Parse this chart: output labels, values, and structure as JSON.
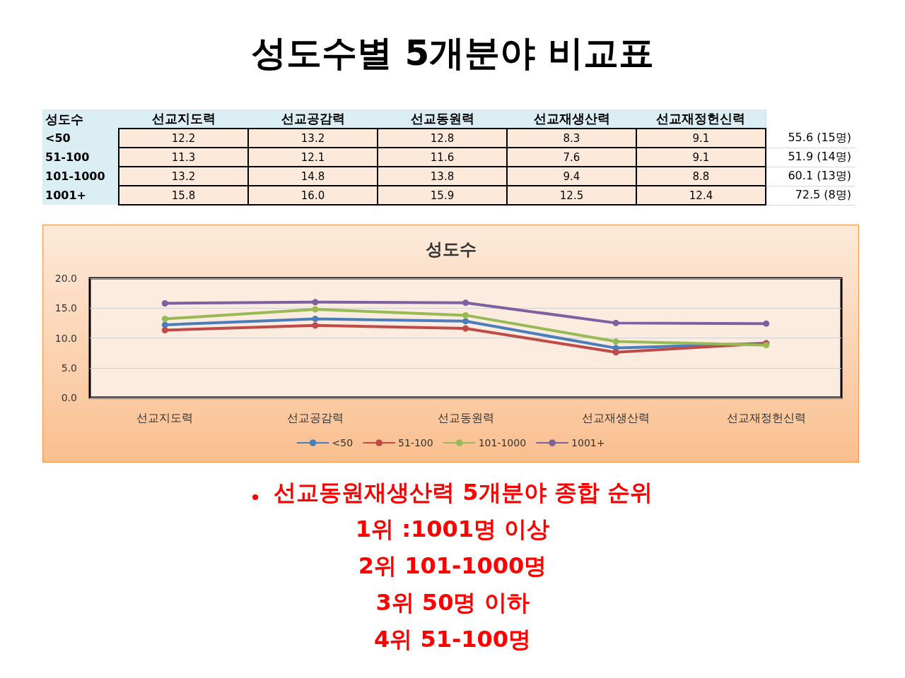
{
  "chart_data": {
    "type": "line",
    "title": "성도수별 5개분야 비교표",
    "subtitle": "성도수",
    "legend_title": "성도수",
    "categories": [
      "선교지도력",
      "선교공감력",
      "선교동원력",
      "선교재생산력",
      "선교재정헌신력"
    ],
    "series": [
      {
        "name": "<50",
        "color": "#4a7ebb",
        "values": [
          12.2,
          13.2,
          12.8,
          8.3,
          9.1
        ],
        "value_labels": [
          "12.2",
          "13.2",
          "12.8",
          "8.3",
          "9.1"
        ]
      },
      {
        "name": "51-100",
        "color": "#be4b48",
        "values": [
          11.3,
          12.1,
          11.6,
          7.6,
          9.1
        ],
        "value_labels": [
          "11.3",
          "12.1",
          "11.6",
          "7.6",
          "9.1"
        ]
      },
      {
        "name": "101-1000",
        "color": "#98b954",
        "values": [
          13.2,
          14.8,
          13.8,
          9.4,
          8.8
        ],
        "value_labels": [
          "13.2",
          "14.8",
          "13.8",
          "9.4",
          "8.8"
        ]
      },
      {
        "name": "1001+",
        "color": "#7d60a0",
        "values": [
          15.8,
          16.0,
          15.9,
          12.5,
          12.4
        ],
        "value_labels": [
          "15.8",
          "16.0",
          "15.9",
          "12.5",
          "12.4"
        ]
      }
    ],
    "totals": [
      "55.6 (15명)",
      "51.9 (14명)",
      "60.1 (13명)",
      "72.5 (8명)"
    ],
    "ylim": [
      0,
      20
    ],
    "yticks": [
      {
        "value": 0,
        "label": "0.0"
      },
      {
        "value": 5,
        "label": "5.0"
      },
      {
        "value": 10,
        "label": "10.0"
      },
      {
        "value": 15,
        "label": "15.0"
      },
      {
        "value": 20,
        "label": "20.0"
      }
    ],
    "grid": "y",
    "legend": "bottom",
    "marker": "circle",
    "line_style": "solid",
    "annotations": [
      "선교동원재생산력 5개분야 종합 순위",
      "1위 :1001명 이상",
      "2위 101-1000명",
      "3위 50명 이하",
      "4위 51-100명"
    ]
  }
}
